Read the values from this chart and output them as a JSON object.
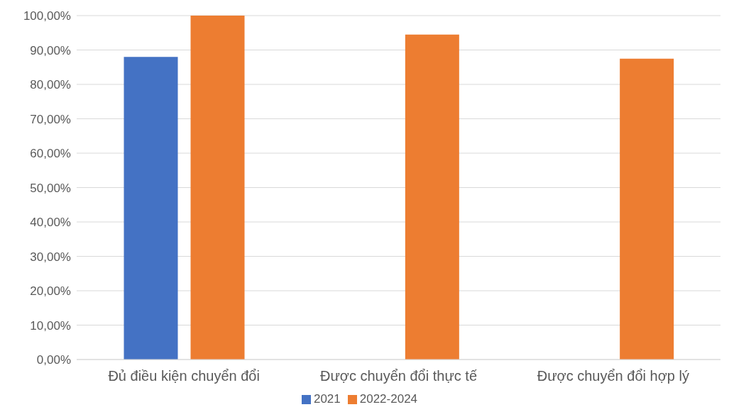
{
  "chart_data": {
    "type": "bar",
    "categories": [
      "Đủ điều kiện chuyển đổi",
      "Được chuyển đổi thực tế",
      "Được chuyển đổi hợp lý"
    ],
    "series": [
      {
        "name": "2021",
        "color": "#4472c4",
        "values": [
          88,
          null,
          null
        ]
      },
      {
        "name": "2022-2024",
        "color": "#ed7d31",
        "values": [
          100,
          94.5,
          87.5
        ]
      }
    ],
    "ylim": [
      0,
      100
    ],
    "yticks": [
      {
        "value": 0,
        "label": "0,00%"
      },
      {
        "value": 10,
        "label": "10,00%"
      },
      {
        "value": 20,
        "label": "20,00%"
      },
      {
        "value": 30,
        "label": "30,00%"
      },
      {
        "value": 40,
        "label": "40,00%"
      },
      {
        "value": 50,
        "label": "50,00%"
      },
      {
        "value": 60,
        "label": "60,00%"
      },
      {
        "value": 70,
        "label": "70,00%"
      },
      {
        "value": 80,
        "label": "80,00%"
      },
      {
        "value": 90,
        "label": "90,00%"
      },
      {
        "value": 100,
        "label": "100,00%"
      }
    ],
    "grid": "y",
    "legend": "bottom"
  }
}
